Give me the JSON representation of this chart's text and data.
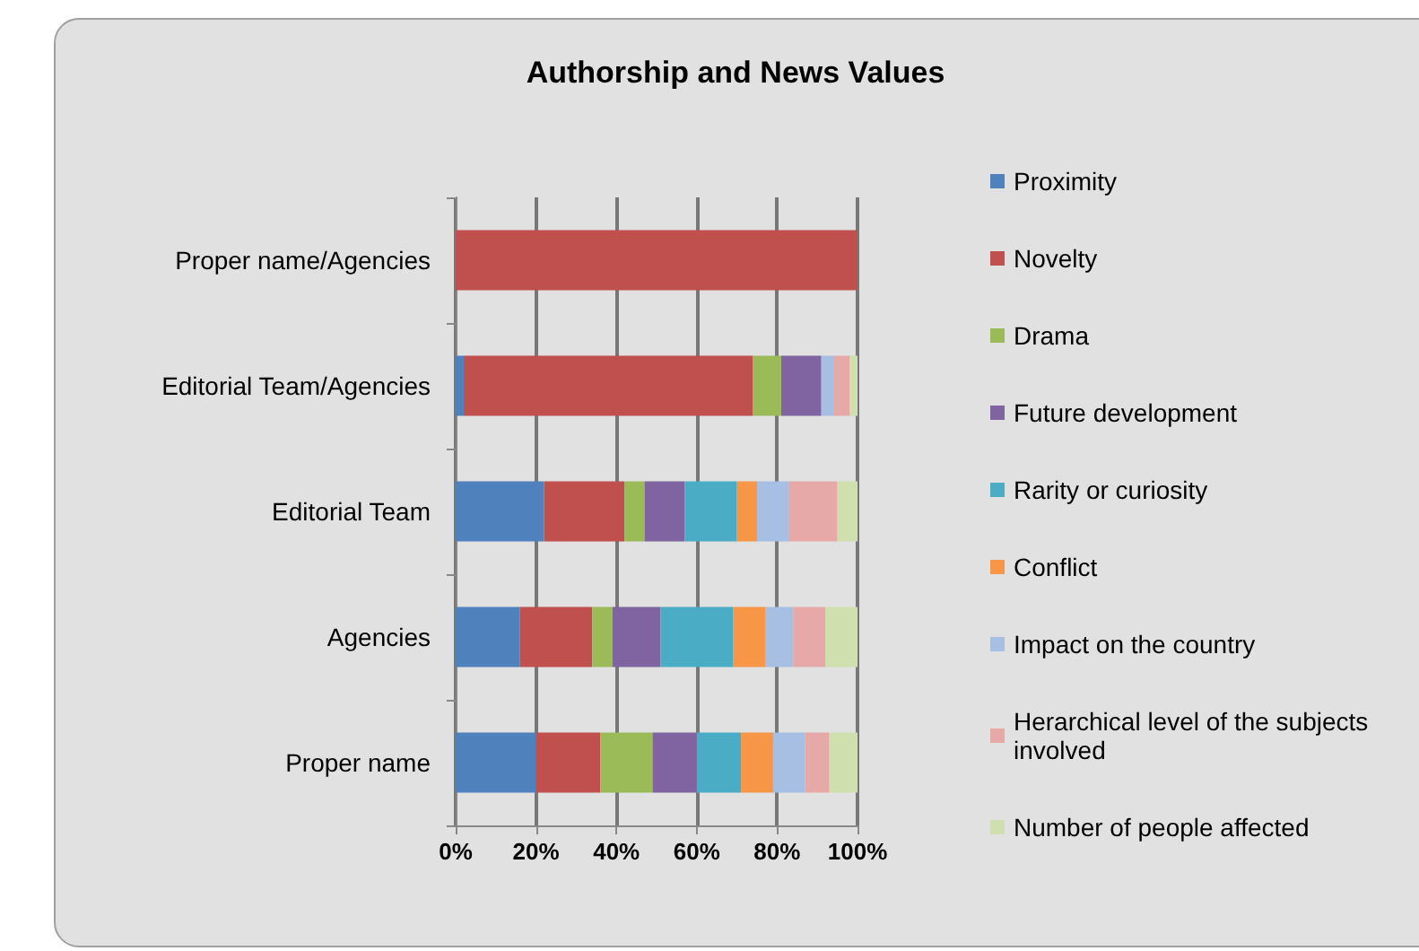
{
  "chart_data": {
    "type": "bar",
    "title": "Authorship and News Values",
    "orientation": "horizontal",
    "stacked": true,
    "categories": [
      "Proper name/Agencies",
      "Editorial Team/Agencies",
      "Editorial Team",
      "Agencies",
      "Proper name"
    ],
    "series": [
      {
        "name": "Proximity",
        "color": "#4f81bd",
        "values": [
          0,
          2,
          22,
          16,
          20
        ]
      },
      {
        "name": "Novelty",
        "color": "#c0504d",
        "values": [
          100,
          72,
          20,
          18,
          16
        ]
      },
      {
        "name": "Drama",
        "color": "#9bbb59",
        "values": [
          0,
          7,
          5,
          5,
          13
        ]
      },
      {
        "name": "Future development",
        "color": "#8064a2",
        "values": [
          0,
          10,
          10,
          12,
          11
        ]
      },
      {
        "name": "Rarity or curiosity",
        "color": "#4bacc6",
        "values": [
          0,
          0,
          13,
          18,
          11
        ]
      },
      {
        "name": "Conflict",
        "color": "#f79646",
        "values": [
          0,
          0,
          5,
          8,
          8
        ]
      },
      {
        "name": "Impact on the country",
        "color": "#a7bfe3",
        "values": [
          0,
          3,
          8,
          7,
          8
        ]
      },
      {
        "name": "Herarchical level of the subjects involved",
        "color": "#e6a9a8",
        "values": [
          0,
          4,
          12,
          8,
          6
        ]
      },
      {
        "name": "Number of people affected",
        "color": "#cfdfae",
        "values": [
          0,
          2,
          5,
          8,
          7
        ]
      }
    ],
    "xlim": [
      0,
      100
    ],
    "xticks": [
      {
        "value": 0,
        "label": "0%"
      },
      {
        "value": 20,
        "label": "20%"
      },
      {
        "value": 40,
        "label": "40%"
      },
      {
        "value": 60,
        "label": "60%"
      },
      {
        "value": 80,
        "label": "80%"
      },
      {
        "value": 100,
        "label": "100%"
      }
    ],
    "grid": "x",
    "legend": "right"
  }
}
